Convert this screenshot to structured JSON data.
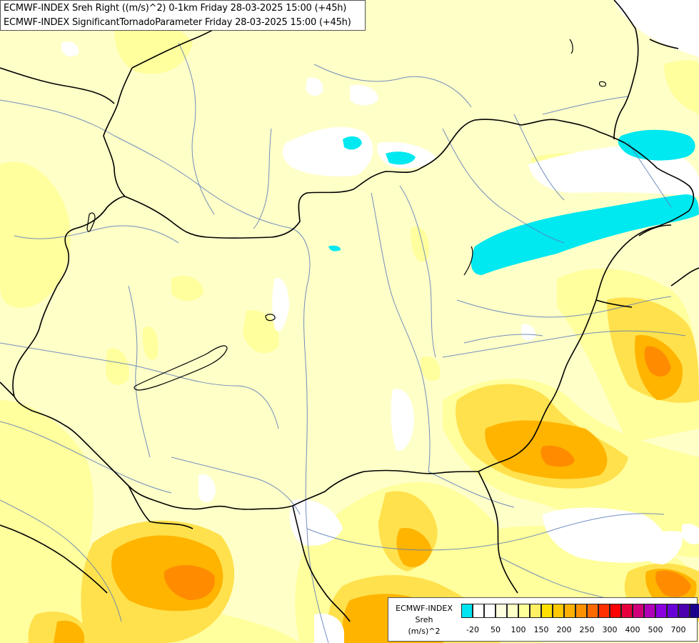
{
  "title": {
    "line1": "ECMWF-INDEX Sreh Right ((m/s)^2) 0-1km Friday 28-03-2025 15:00 (+45h)",
    "line2": "ECMWF-INDEX SignificantTornadoParameter Friday 28-03-2025 15:00 (+45h)"
  },
  "legend": {
    "title1": "ECMWF-INDEX",
    "title2": "Sreh",
    "title3": "(m/s)^2",
    "colors": [
      "#00e5f0",
      "#ffffff",
      "#ffffff",
      "#ffffe0",
      "#ffffc8",
      "#ffff99",
      "#fff066",
      "#ffe000",
      "#ffc800",
      "#ffb000",
      "#ff9000",
      "#ff6a00",
      "#ff3000",
      "#ff0000",
      "#e8003c",
      "#d0007a",
      "#b000b8",
      "#8c00e0",
      "#6a00d8",
      "#4c00b0",
      "#1a008a"
    ],
    "ticks": [
      "-20",
      "50",
      "100",
      "150",
      "200",
      "250",
      "300",
      "400",
      "500",
      "700"
    ]
  },
  "map": {
    "background": "#ffffc8",
    "cyan": "#00e5f0",
    "orange": "#ffa500",
    "dark_orange": "#ff8000"
  }
}
